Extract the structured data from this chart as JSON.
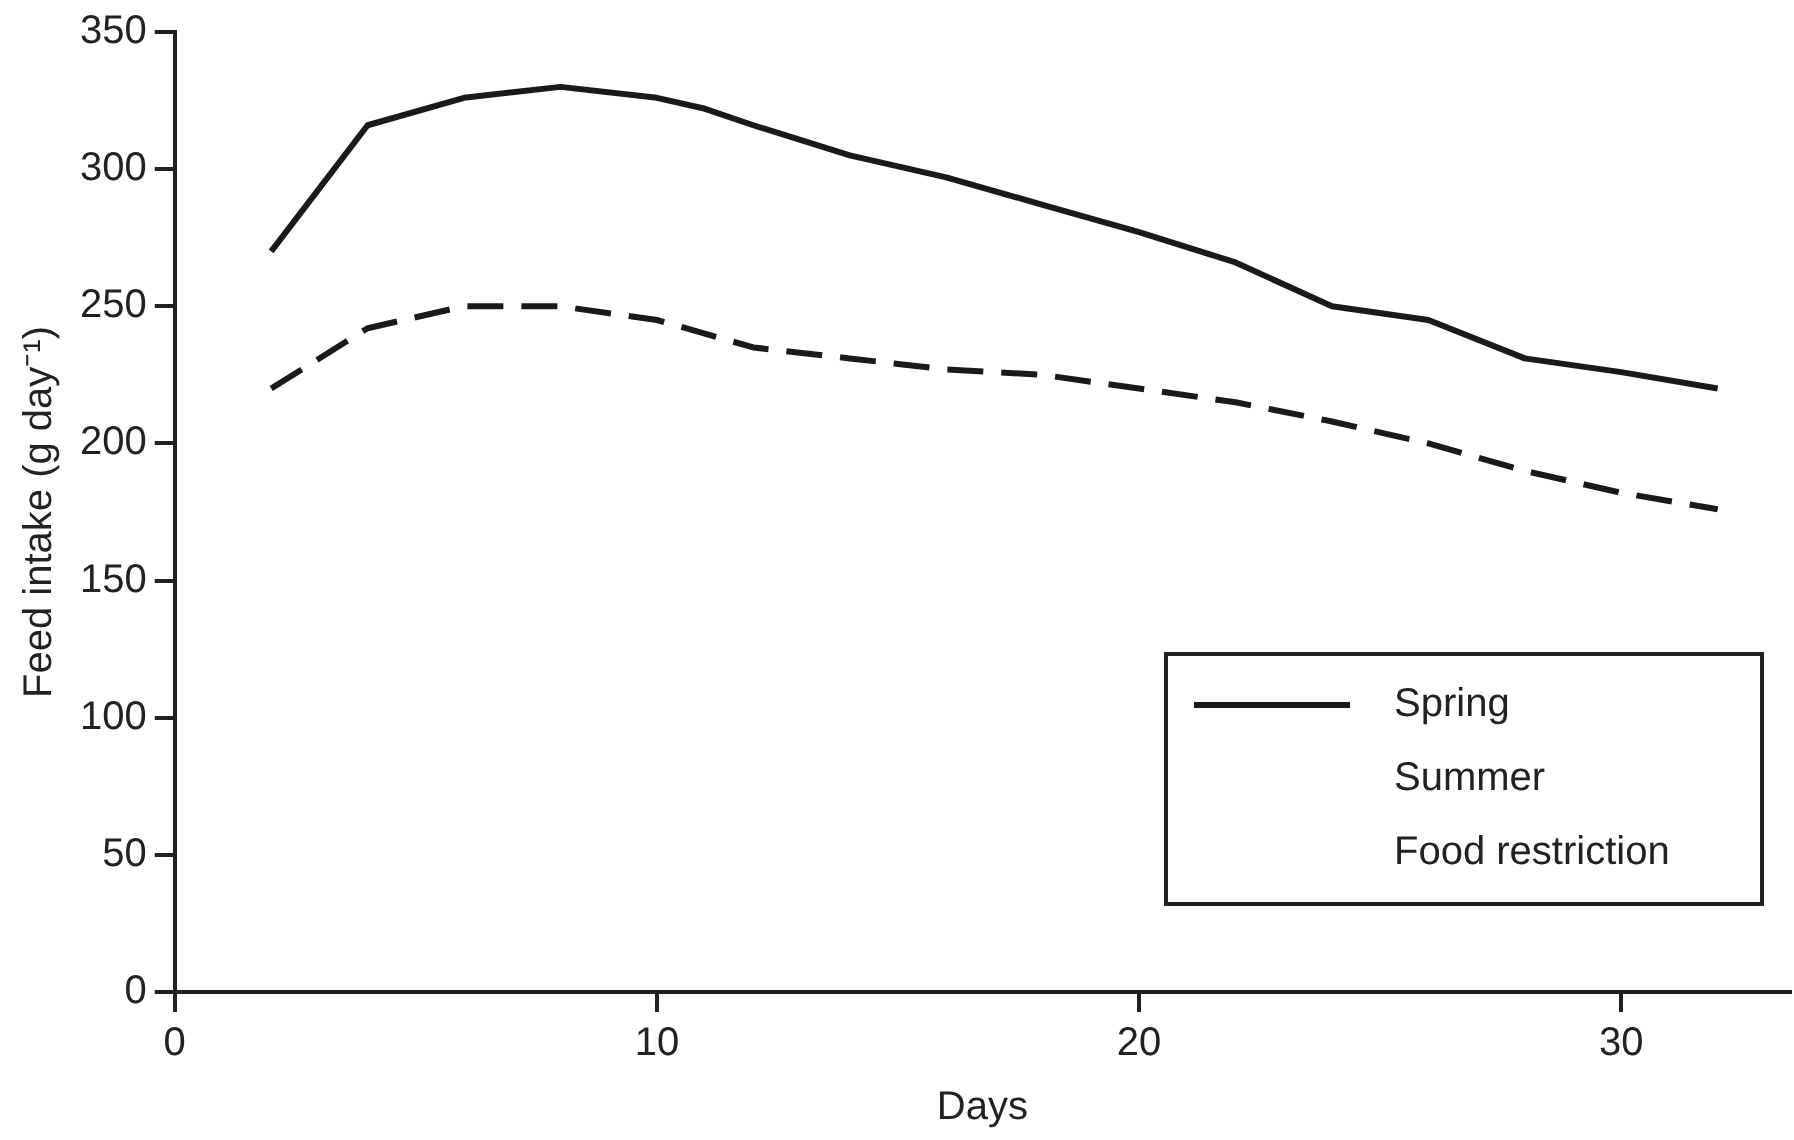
{
  "chart_data": {
    "type": "line",
    "xlabel": "Days",
    "ylabel": "Feed intake (g day⁻¹)",
    "xlim": [
      0,
      33.5
    ],
    "xticks": [
      0,
      10,
      20,
      30
    ],
    "ylim": [
      0,
      350
    ],
    "yticks": [
      0,
      50,
      100,
      150,
      200,
      250,
      300,
      350
    ],
    "grid": false,
    "legend": "bottom right",
    "marker": "none",
    "series": [
      {
        "name": "Spring",
        "color": "#1a1a1a",
        "line_style": "solid",
        "x": [
          2,
          4,
          6,
          8,
          10,
          11,
          12,
          14,
          16,
          18,
          20,
          22,
          24,
          26,
          28,
          30,
          32
        ],
        "values": [
          270,
          316,
          326,
          330,
          326,
          322,
          316,
          305,
          297,
          287,
          277,
          266,
          250,
          245,
          231,
          226,
          220
        ]
      },
      {
        "color": "#1a1a1a",
        "line_style": "dashed",
        "x": [
          2,
          4,
          6,
          8,
          10,
          12,
          14,
          16,
          18,
          20,
          22,
          24,
          26,
          28,
          30,
          32
        ],
        "values": [
          220,
          242,
          250,
          250,
          245,
          235,
          231,
          227,
          225,
          220,
          215,
          208,
          200,
          190,
          182,
          176
        ]
      }
    ],
    "annotations": [
      "Summer",
      "Food restriction"
    ]
  }
}
